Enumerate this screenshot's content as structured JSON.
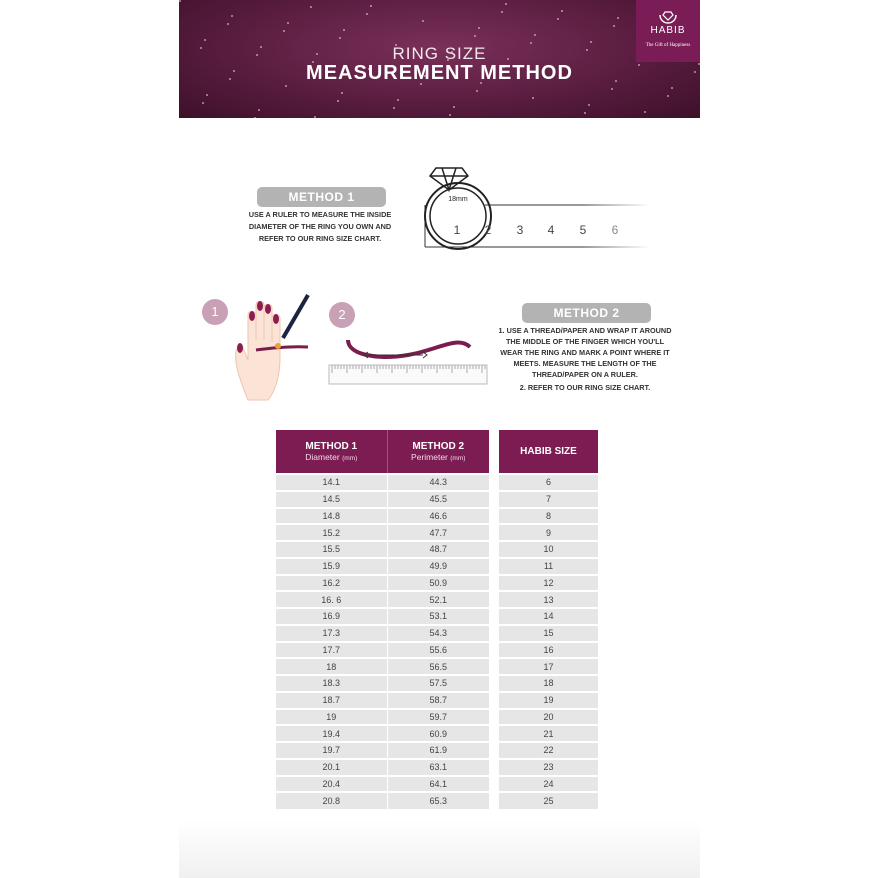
{
  "banner": {
    "title_line1": "RING SIZE",
    "title_line2": "MEASUREMENT METHOD"
  },
  "logo": {
    "name": "HABIB",
    "tagline": "The Gift of Happiness"
  },
  "colors": {
    "brand": "#7c1c53",
    "pill": "#b3b3b3"
  },
  "method1": {
    "label": "METHOD 1",
    "lines": [
      "USE A RULER TO MEASURE THE INSIDE",
      "DIAMETER OF THE RING YOU OWN AND",
      "REFER TO OUR RING SIZE CHART."
    ],
    "ring_label": "18mm",
    "ruler_numbers": [
      "1",
      "2",
      "3",
      "4",
      "5",
      "6"
    ]
  },
  "method2": {
    "label": "METHOD 2",
    "step_badges": [
      "1",
      "2"
    ],
    "lines": [
      "1. USE A THREAD/PAPER AND WRAP IT AROUND",
      "THE MIDDLE OF THE FINGER WHICH YOU'LL",
      "WEAR THE RING AND MARK A POINT WHERE IT",
      "MEETS. MEASURE THE LENGTH OF THE",
      "THREAD/PAPER ON A RULER.",
      "2. REFER TO OUR RING SIZE CHART."
    ]
  },
  "table": {
    "headers": [
      {
        "title": "METHOD 1",
        "sub": "Diameter",
        "unit": "(mm)"
      },
      {
        "title": "METHOD 2",
        "sub": "Perimeter",
        "unit": "(mm)"
      },
      {
        "title": "HABIB SIZE"
      }
    ],
    "rows": [
      [
        "14.1",
        "44.3",
        "6"
      ],
      [
        "14.5",
        "45.5",
        "7"
      ],
      [
        "14.8",
        "46.6",
        "8"
      ],
      [
        "15.2",
        "47.7",
        "9"
      ],
      [
        "15.5",
        "48.7",
        "10"
      ],
      [
        "15.9",
        "49.9",
        "11"
      ],
      [
        "16.2",
        "50.9",
        "12"
      ],
      [
        "16. 6",
        "52.1",
        "13"
      ],
      [
        "16.9",
        "53.1",
        "14"
      ],
      [
        "17.3",
        "54.3",
        "15"
      ],
      [
        "17.7",
        "55.6",
        "16"
      ],
      [
        "18",
        "56.5",
        "17"
      ],
      [
        "18.3",
        "57.5",
        "18"
      ],
      [
        "18.7",
        "58.7",
        "19"
      ],
      [
        "19",
        "59.7",
        "20"
      ],
      [
        "19.4",
        "60.9",
        "21"
      ],
      [
        "19.7",
        "61.9",
        "22"
      ],
      [
        "20.1",
        "63.1",
        "23"
      ],
      [
        "20.4",
        "64.1",
        "24"
      ],
      [
        "20.8",
        "65.3",
        "25"
      ]
    ]
  }
}
